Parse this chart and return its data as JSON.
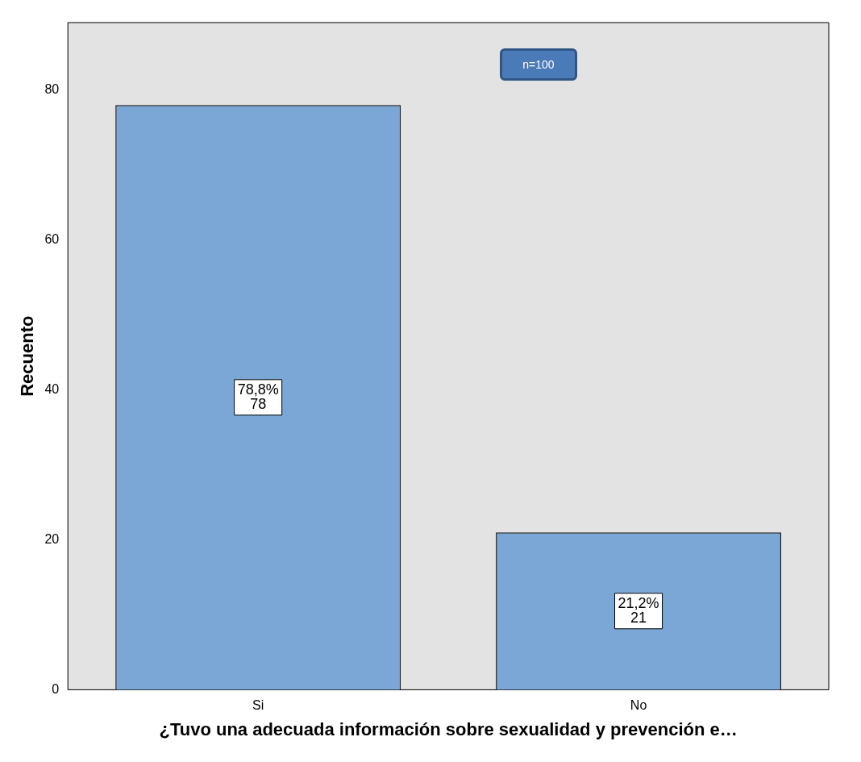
{
  "chart_data": {
    "type": "bar",
    "categories": [
      "Si",
      "No"
    ],
    "values": [
      78,
      21
    ],
    "color": "#7ba7d6",
    "value_labels": [
      "78,8%\n78",
      "21,2%\n21"
    ],
    "ylim": [
      0,
      89
    ],
    "yticks": [
      0,
      20,
      40,
      60,
      80
    ],
    "grid": false,
    "legend": false,
    "xlabel": "¿Tuvo una adecuada información sobre sexualidad y prevención e…",
    "ylabel": "Recuento",
    "annotations": [
      "n=100"
    ]
  }
}
